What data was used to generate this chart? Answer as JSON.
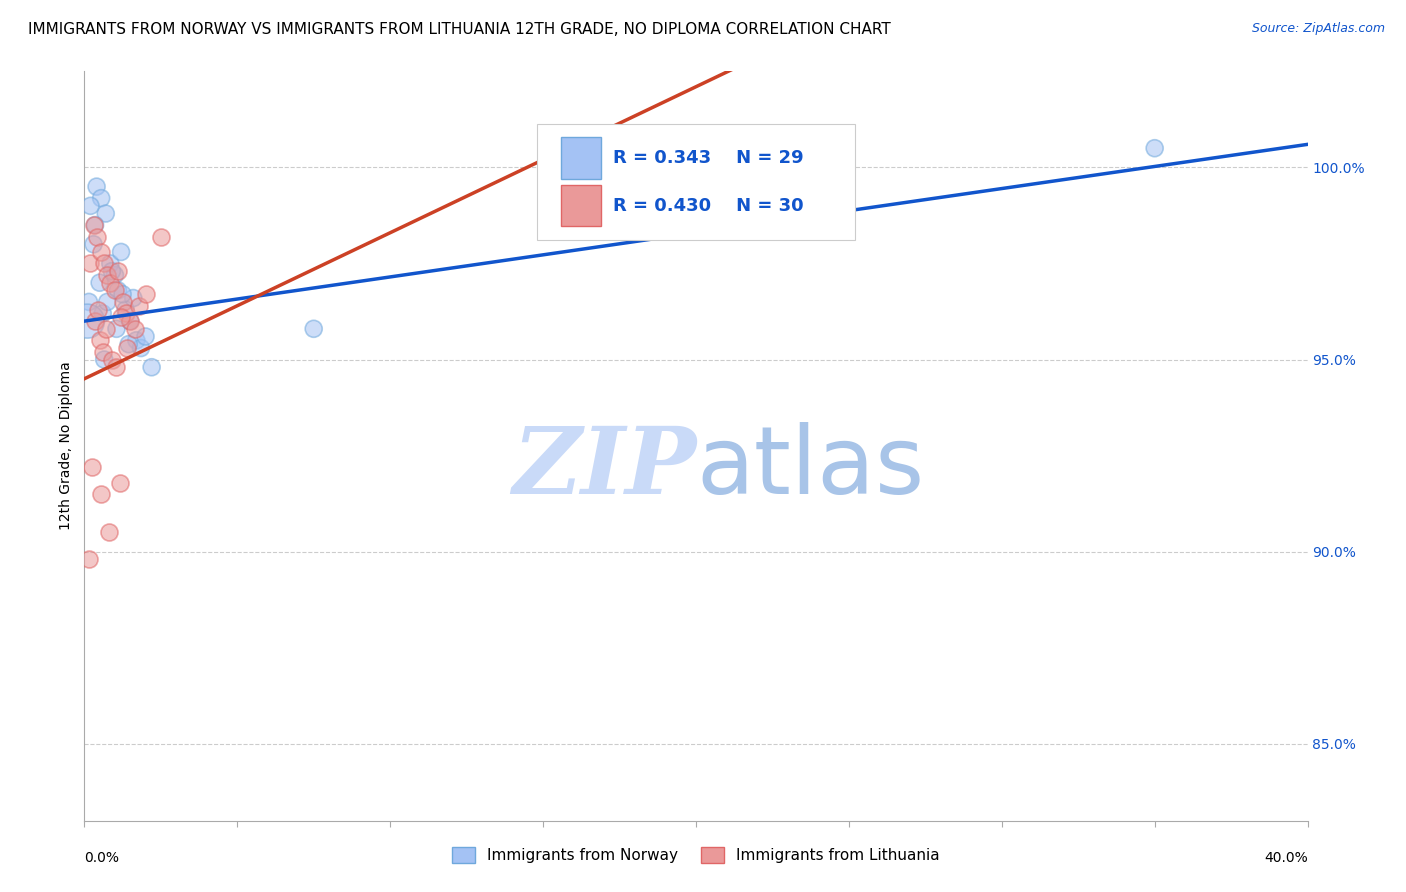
{
  "title": "IMMIGRANTS FROM NORWAY VS IMMIGRANTS FROM LITHUANIA 12TH GRADE, NO DIPLOMA CORRELATION CHART",
  "source": "Source: ZipAtlas.com",
  "ylabel": "12th Grade, No Diploma",
  "xlim": [
    0.0,
    40.0
  ],
  "ylim": [
    83.0,
    102.5
  ],
  "norway_R": 0.343,
  "norway_N": 29,
  "lithuania_R": 0.43,
  "lithuania_N": 30,
  "norway_color": "#a4c2f4",
  "norway_edge_color": "#6fa8dc",
  "lithuania_color": "#ea9999",
  "lithuania_edge_color": "#e06666",
  "norway_line_color": "#1155cc",
  "lithuania_line_color": "#cc4125",
  "norway_scatter_x": [
    0.15,
    0.4,
    0.55,
    0.7,
    0.85,
    1.0,
    1.1,
    1.2,
    1.35,
    1.5,
    1.6,
    1.7,
    1.85,
    2.0,
    2.2,
    0.3,
    0.5,
    0.6,
    0.75,
    0.9,
    1.05,
    1.25,
    1.45,
    0.2,
    0.35,
    0.65,
    7.5,
    35.0,
    0.1
  ],
  "norway_scatter_y": [
    96.5,
    99.5,
    99.2,
    98.8,
    97.5,
    97.2,
    96.8,
    97.8,
    96.3,
    96.0,
    96.6,
    95.5,
    95.3,
    95.6,
    94.8,
    98.0,
    97.0,
    96.2,
    96.5,
    97.3,
    95.8,
    96.7,
    95.4,
    99.0,
    98.5,
    95.0,
    95.8,
    100.5,
    96.0
  ],
  "norway_scatter_size": [
    150,
    150,
    150,
    150,
    150,
    150,
    150,
    150,
    150,
    150,
    150,
    150,
    150,
    150,
    150,
    150,
    150,
    150,
    150,
    150,
    150,
    150,
    150,
    150,
    150,
    150,
    150,
    150,
    600
  ],
  "lithuania_scatter_x": [
    0.2,
    0.3,
    0.4,
    0.55,
    0.65,
    0.75,
    0.85,
    1.0,
    1.1,
    1.25,
    1.35,
    1.5,
    1.65,
    1.8,
    2.0,
    2.5,
    0.35,
    0.5,
    0.6,
    0.7,
    0.9,
    1.05,
    1.2,
    1.4,
    0.45,
    0.25,
    0.55,
    0.8,
    1.15,
    0.15
  ],
  "lithuania_scatter_y": [
    97.5,
    98.5,
    98.2,
    97.8,
    97.5,
    97.2,
    97.0,
    96.8,
    97.3,
    96.5,
    96.2,
    96.0,
    95.8,
    96.4,
    96.7,
    98.2,
    96.0,
    95.5,
    95.2,
    95.8,
    95.0,
    94.8,
    96.1,
    95.3,
    96.3,
    92.2,
    91.5,
    90.5,
    91.8,
    89.8
  ],
  "norway_line_intercept": 96.0,
  "norway_line_slope": 0.115,
  "lithuania_line_intercept": 94.5,
  "lithuania_line_slope": 0.38,
  "y_ticks": [
    85.0,
    90.0,
    95.0,
    100.0
  ],
  "y_tick_color": "#1155cc",
  "grid_color": "#cccccc",
  "background_color": "#ffffff",
  "watermark_zip": "ZIP",
  "watermark_atlas": "atlas",
  "watermark_color": "#c9daf8",
  "title_fontsize": 11,
  "source_fontsize": 9,
  "axis_label_fontsize": 10,
  "tick_fontsize": 10,
  "legend_R_N_color": "#1155cc",
  "legend_text_color": "#333333"
}
